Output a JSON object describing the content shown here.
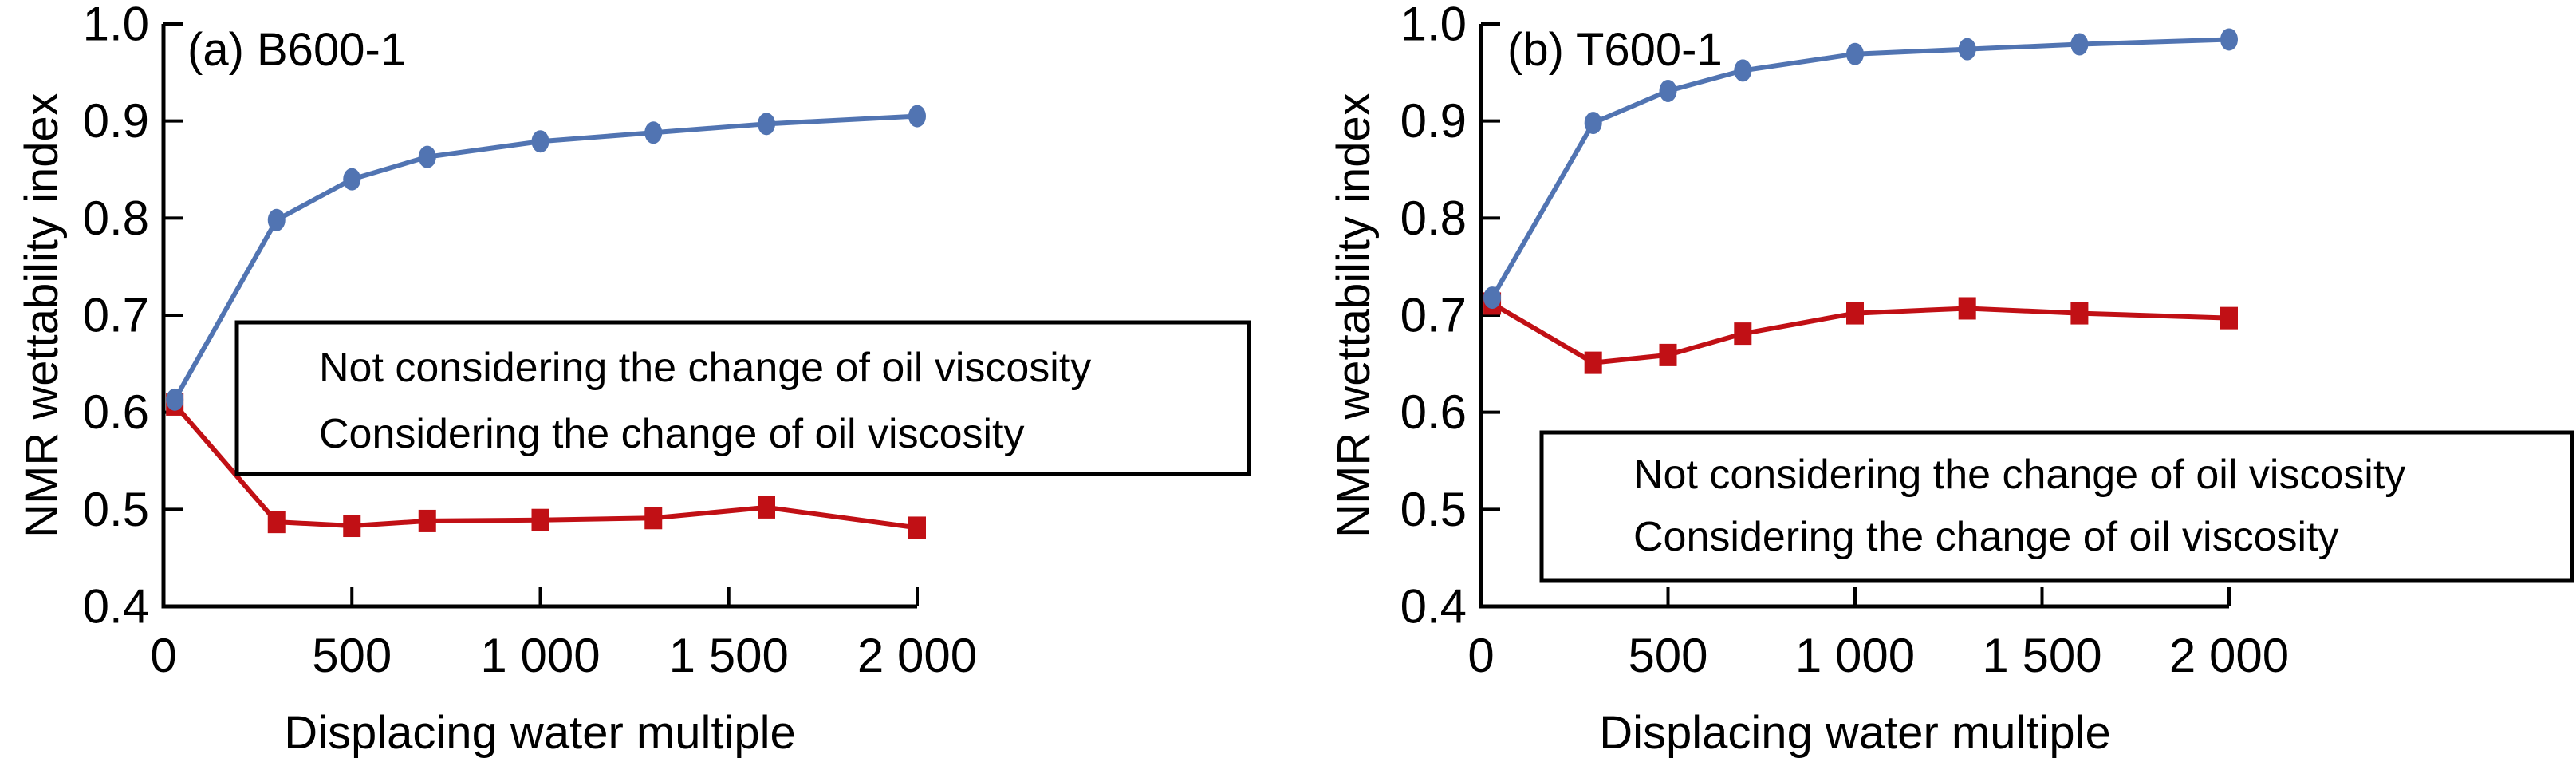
{
  "figure": {
    "background": "#ffffff",
    "text_color": "#000000",
    "axis_color": "#000000"
  },
  "chart_data": [
    {
      "type": "line",
      "title": "(a) B600-1",
      "xlabel": "Displacing water multiple",
      "ylabel": "NMR wettability index",
      "xlim": [
        0,
        2000
      ],
      "ylim": [
        0.4,
        1.0
      ],
      "grid": false,
      "legend_position": "inside-middle-left",
      "xticks": {
        "values": [
          0,
          500,
          1000,
          1500,
          2000
        ],
        "labels": [
          "0",
          "500",
          "1 000",
          "1 500",
          "2 000"
        ]
      },
      "yticks": {
        "values": [
          0.4,
          0.5,
          0.6,
          0.7,
          0.8,
          0.9,
          1.0
        ],
        "labels": [
          "0.4",
          "0.5",
          "0.6",
          "0.7",
          "0.8",
          "0.9",
          "1.0"
        ]
      },
      "x": [
        30,
        300,
        500,
        700,
        1000,
        1300,
        1600,
        2000
      ],
      "series": [
        {
          "name": "Not considering the change of oil viscosity",
          "color": "#C11015",
          "marker": "square",
          "values": [
            0.608,
            0.487,
            0.483,
            0.488,
            0.489,
            0.491,
            0.502,
            0.481
          ]
        },
        {
          "name": "Considering the change of oil viscosity",
          "color": "#5174B2",
          "marker": "circle",
          "values": [
            0.613,
            0.798,
            0.84,
            0.863,
            0.879,
            0.888,
            0.897,
            0.905
          ]
        }
      ]
    },
    {
      "type": "line",
      "title": "(b) T600-1",
      "xlabel": "Displacing water multiple",
      "ylabel": "NMR wettability index",
      "xlim": [
        0,
        2000
      ],
      "ylim": [
        0.4,
        1.0
      ],
      "grid": false,
      "legend_position": "inside-middle-left",
      "xticks": {
        "values": [
          0,
          500,
          1000,
          1500,
          2000
        ],
        "labels": [
          "0",
          "500",
          "1 000",
          "1 500",
          "2 000"
        ]
      },
      "yticks": {
        "values": [
          0.4,
          0.5,
          0.6,
          0.7,
          0.8,
          0.9,
          1.0
        ],
        "labels": [
          "0.4",
          "0.5",
          "0.6",
          "0.7",
          "0.8",
          "0.9",
          "1.0"
        ]
      },
      "x": [
        30,
        300,
        500,
        700,
        1000,
        1300,
        1600,
        2000
      ],
      "series": [
        {
          "name": "Not considering the change of oil viscosity",
          "color": "#C11015",
          "marker": "square",
          "values": [
            0.712,
            0.651,
            0.659,
            0.681,
            0.702,
            0.707,
            0.702,
            0.697
          ]
        },
        {
          "name": "Considering the change of oil viscosity",
          "color": "#5174B2",
          "marker": "circle",
          "values": [
            0.718,
            0.898,
            0.931,
            0.952,
            0.969,
            0.974,
            0.979,
            0.984
          ]
        }
      ]
    }
  ]
}
